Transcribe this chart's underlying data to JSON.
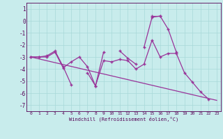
{
  "background_color": "#c8ecec",
  "grid_color": "#a8d8d8",
  "line_color": "#993399",
  "xlabel": "Windchill (Refroidissement éolien,°C)",
  "xlim": [
    -0.5,
    23.5
  ],
  "ylim": [
    -7.5,
    1.5
  ],
  "xtick_labels": [
    "0",
    "1",
    "2",
    "3",
    "4",
    "5",
    "6",
    "7",
    "8",
    "9",
    "10",
    "11",
    "12",
    "13",
    "14",
    "15",
    "16",
    "17",
    "18",
    "19",
    "20",
    "21",
    "22",
    "23"
  ],
  "xticks": [
    0,
    1,
    2,
    3,
    4,
    5,
    6,
    7,
    8,
    9,
    10,
    11,
    12,
    13,
    14,
    15,
    16,
    17,
    18,
    19,
    20,
    21,
    22,
    23
  ],
  "yticks": [
    -7,
    -6,
    -5,
    -4,
    -3,
    -2,
    -1,
    0,
    1
  ],
  "series": [
    [
      0,
      -3.0
    ],
    [
      1,
      -3.0
    ],
    [
      2,
      -2.9
    ],
    [
      3,
      -2.5
    ],
    [
      4,
      -3.8
    ],
    [
      5,
      -5.3
    ],
    [
      7,
      -4.3
    ],
    [
      8,
      -5.4
    ],
    [
      9,
      -2.6
    ],
    [
      11,
      -2.5
    ],
    [
      12,
      -3.1
    ],
    [
      13,
      -3.6
    ],
    [
      15,
      0.4
    ],
    [
      16,
      0.4
    ]
  ],
  "series2": [
    [
      14,
      -2.2
    ],
    [
      15,
      0.3
    ],
    [
      16,
      0.4
    ],
    [
      17,
      -0.7
    ],
    [
      18,
      -2.6
    ]
  ],
  "series3": [
    [
      0,
      -3.0
    ],
    [
      1,
      -3.0
    ],
    [
      2,
      -3.0
    ],
    [
      3,
      -2.6
    ],
    [
      4,
      -3.9
    ],
    [
      5,
      -3.4
    ],
    [
      6,
      -3.0
    ],
    [
      7,
      -3.8
    ],
    [
      8,
      -5.4
    ],
    [
      9,
      -3.3
    ],
    [
      10,
      -3.4
    ],
    [
      11,
      -3.2
    ],
    [
      12,
      -3.3
    ],
    [
      13,
      -4.0
    ],
    [
      14,
      -3.6
    ],
    [
      15,
      -1.6
    ],
    [
      16,
      -3.0
    ],
    [
      17,
      -2.7
    ],
    [
      18,
      -2.7
    ],
    [
      19,
      -4.3
    ],
    [
      20,
      -5.1
    ],
    [
      21,
      -5.9
    ],
    [
      22,
      -6.5
    ]
  ],
  "series4_x": [
    0,
    23
  ],
  "series4_y": [
    -3.0,
    -6.6
  ]
}
